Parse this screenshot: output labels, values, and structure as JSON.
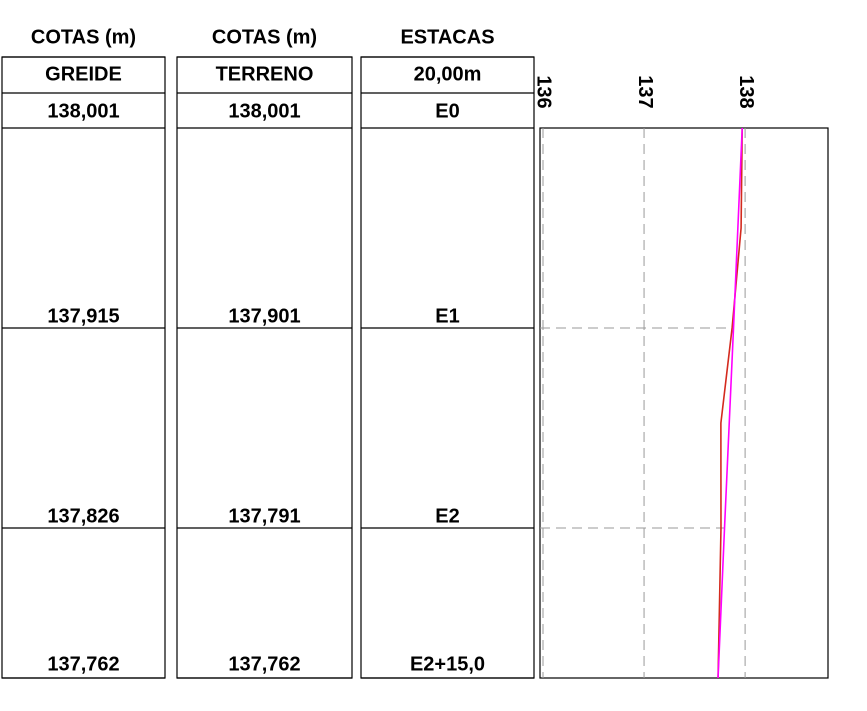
{
  "table": {
    "columns": [
      {
        "header": "COTAS (m)",
        "subheader": "GREIDE",
        "values": [
          "138,001",
          "137,915",
          "137,826",
          "137,762"
        ]
      },
      {
        "header": "COTAS (m)",
        "subheader": "TERRENO",
        "values": [
          "138,001",
          "137,901",
          "137,791",
          "137,762"
        ]
      },
      {
        "header": "ESTACAS",
        "subheader": "20,00m",
        "values": [
          "E0",
          "E1",
          "E2",
          "E2+15,0"
        ]
      }
    ]
  },
  "chart_data": {
    "type": "line",
    "orientation": "vertical",
    "xlim": [
      136,
      138.85
    ],
    "xticks": [
      136,
      137,
      138
    ],
    "ylim": [
      0,
      55
    ],
    "grid": true,
    "series": [
      {
        "name": "TERRENO",
        "color": "#d42a1e",
        "x": [
          0,
          10,
          20,
          29.5,
          30,
          40,
          55
        ],
        "values": [
          138.001,
          137.99,
          137.901,
          137.79,
          137.79,
          137.791,
          137.762
        ]
      },
      {
        "name": "GREIDE",
        "color": "#ff00ff",
        "x": [
          0,
          20,
          40,
          55
        ],
        "values": [
          138.001,
          137.915,
          137.826,
          137.762
        ]
      }
    ]
  }
}
